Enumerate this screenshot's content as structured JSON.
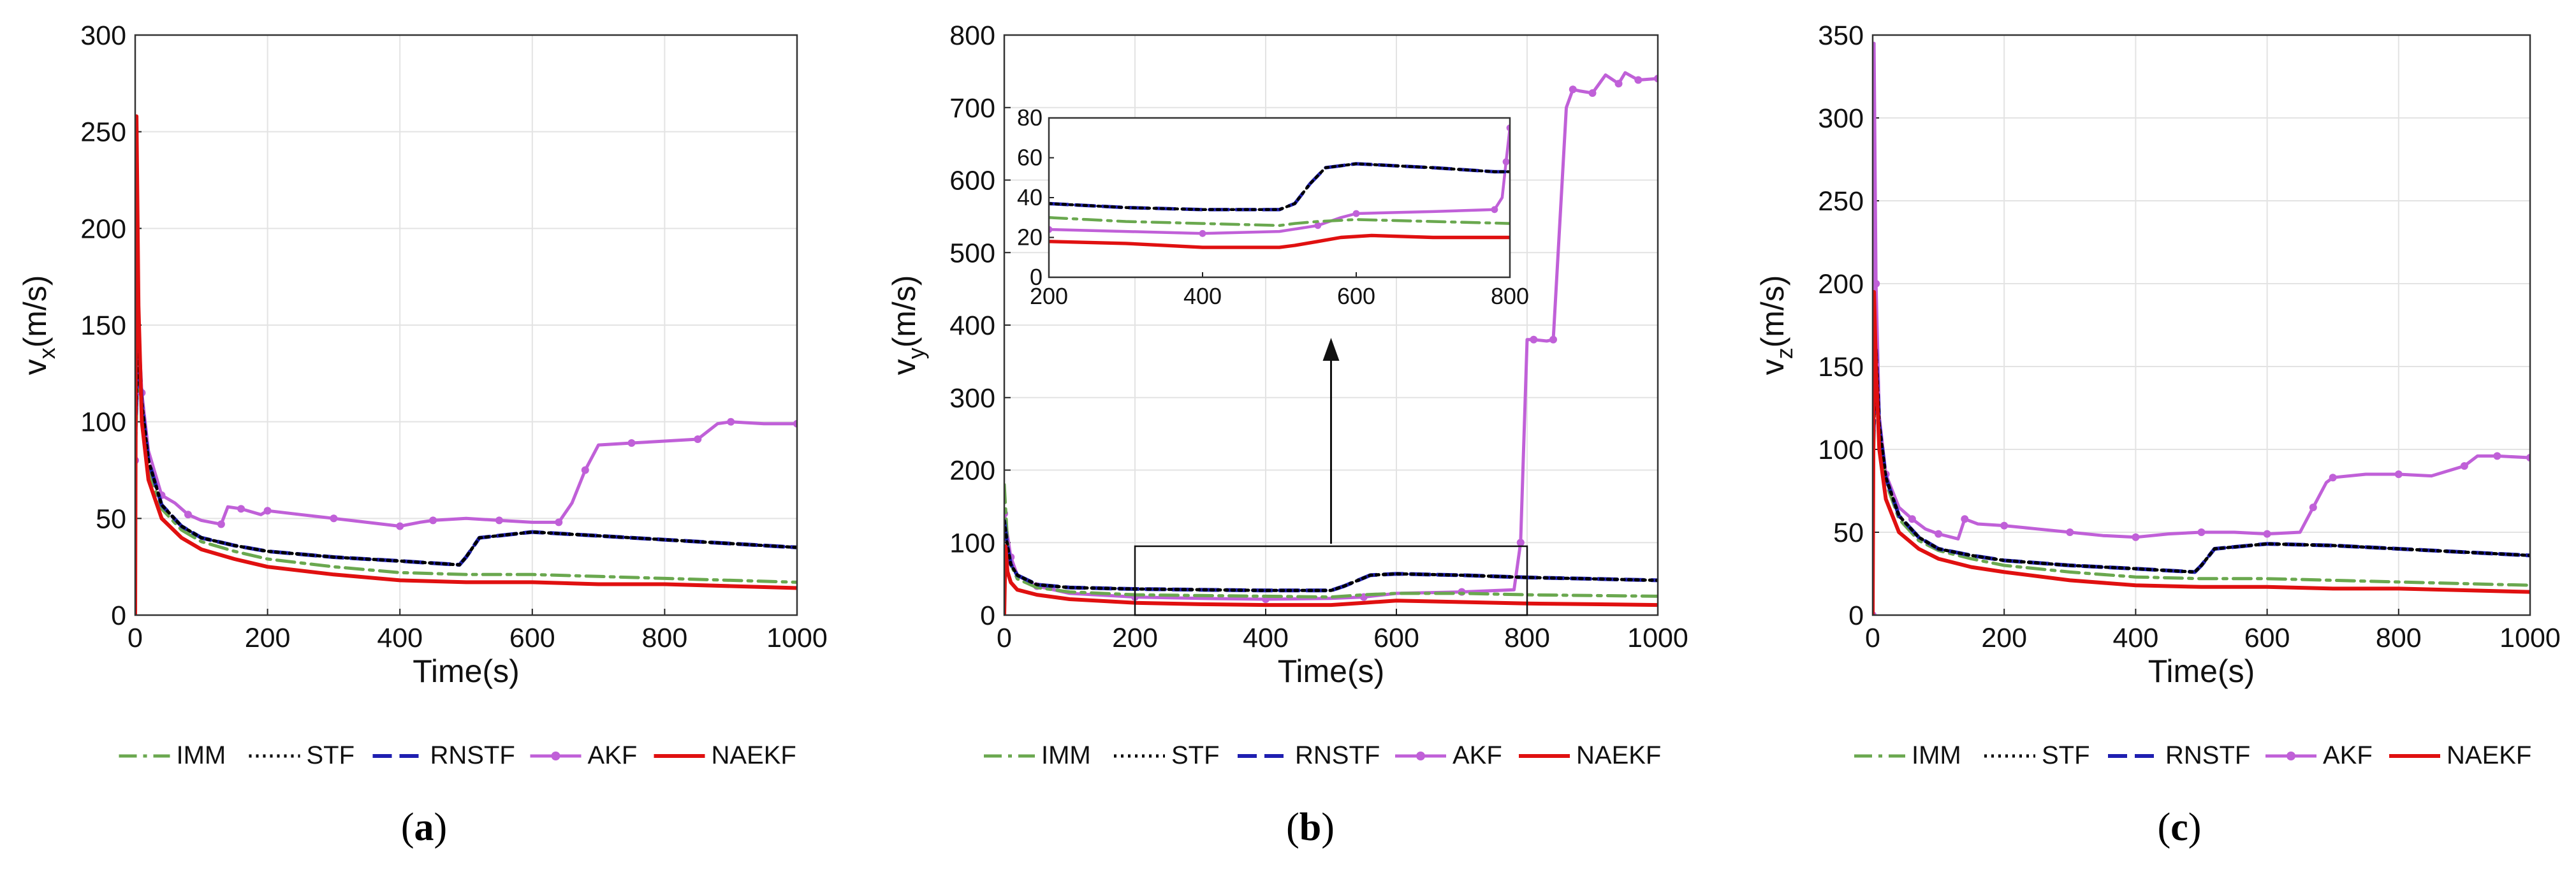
{
  "colors": {
    "IMM": "#6aa84f",
    "STF": "#000000",
    "RNSTF": "#1f1fb0",
    "AKF": "#c060d8",
    "NAEKF": "#e01010"
  },
  "legend": [
    "IMM",
    "STF",
    "RNSTF",
    "AKF",
    "NAEKF"
  ],
  "chart_data": [
    {
      "id": "a",
      "type": "line",
      "caption": {
        "open": "(",
        "letter": "a",
        "close": ")"
      },
      "xlabel": "Time(s)",
      "ylabel_main": "v",
      "ylabel_sub": "x",
      "ylabel_unit": "(m/s)",
      "xlim": [
        0,
        1000
      ],
      "ylim": [
        0,
        300
      ],
      "xticks": [
        "0",
        "200",
        "400",
        "600",
        "800",
        "1000"
      ],
      "yticks": [
        "0",
        "50",
        "100",
        "150",
        "200",
        "250",
        "300"
      ],
      "series": [
        {
          "name": "IMM",
          "x": [
            0,
            5,
            10,
            20,
            40,
            70,
            100,
            150,
            200,
            300,
            400,
            500,
            600,
            700,
            800,
            900,
            1000
          ],
          "y": [
            80,
            140,
            100,
            75,
            55,
            44,
            38,
            33,
            29,
            25,
            22,
            21,
            21,
            20,
            19,
            18,
            17
          ]
        },
        {
          "name": "STF",
          "x": [
            0,
            5,
            10,
            20,
            40,
            70,
            100,
            150,
            200,
            300,
            400,
            490,
            500,
            520,
            600,
            700,
            800,
            900,
            1000
          ],
          "y": [
            90,
            145,
            110,
            80,
            57,
            46,
            40,
            36,
            33,
            30,
            28,
            26,
            30,
            40,
            43,
            41,
            39,
            37,
            35
          ]
        },
        {
          "name": "RNSTF",
          "x": [
            0,
            5,
            10,
            20,
            40,
            70,
            100,
            150,
            200,
            300,
            400,
            490,
            500,
            520,
            600,
            700,
            800,
            900,
            1000
          ],
          "y": [
            90,
            145,
            110,
            80,
            57,
            46,
            40,
            36,
            33,
            30,
            28,
            26,
            30,
            40,
            43,
            41,
            39,
            37,
            35
          ]
        },
        {
          "name": "AKF",
          "x": [
            0,
            5,
            10,
            20,
            40,
            60,
            80,
            100,
            130,
            140,
            160,
            190,
            200,
            250,
            300,
            350,
            400,
            430,
            450,
            500,
            550,
            600,
            640,
            660,
            680,
            700,
            750,
            800,
            850,
            880,
            900,
            950,
            1000
          ],
          "y": [
            80,
            150,
            115,
            85,
            62,
            58,
            52,
            49,
            47,
            56,
            55,
            52,
            54,
            52,
            50,
            48,
            46,
            48,
            49,
            50,
            49,
            48,
            48,
            58,
            75,
            88,
            89,
            90,
            91,
            99,
            100,
            99,
            99
          ]
        },
        {
          "name": "NAEKF",
          "x": [
            0,
            2,
            5,
            10,
            20,
            40,
            70,
            100,
            150,
            200,
            300,
            400,
            500,
            600,
            700,
            800,
            900,
            1000
          ],
          "y": [
            0,
            258,
            160,
            100,
            70,
            50,
            40,
            34,
            29,
            25,
            21,
            18,
            17,
            17,
            16,
            16,
            15,
            14
          ]
        }
      ]
    },
    {
      "id": "b",
      "type": "line",
      "caption": {
        "open": "(",
        "letter": "b",
        "close": ")"
      },
      "xlabel": "Time(s)",
      "ylabel_main": "v",
      "ylabel_sub": "y",
      "ylabel_unit": "(m/s)",
      "xlim": [
        0,
        1000
      ],
      "ylim": [
        0,
        800
      ],
      "xticks": [
        "0",
        "200",
        "400",
        "600",
        "800",
        "1000"
      ],
      "yticks": [
        "0",
        "100",
        "200",
        "300",
        "400",
        "500",
        "600",
        "700",
        "800"
      ],
      "series": [
        {
          "name": "IMM",
          "x": [
            0,
            5,
            10,
            20,
            50,
            100,
            200,
            300,
            400,
            500,
            550,
            600,
            700,
            800,
            900,
            1000
          ],
          "y": [
            180,
            100,
            70,
            50,
            38,
            32,
            28,
            27,
            26,
            25,
            28,
            30,
            30,
            28,
            27,
            26
          ]
        },
        {
          "name": "STF",
          "x": [
            0,
            5,
            10,
            20,
            50,
            100,
            200,
            300,
            400,
            500,
            520,
            560,
            600,
            700,
            800,
            900,
            1000
          ],
          "y": [
            130,
            95,
            70,
            55,
            42,
            38,
            36,
            35,
            34,
            34,
            40,
            55,
            57,
            55,
            52,
            50,
            48
          ]
        },
        {
          "name": "RNSTF",
          "x": [
            0,
            5,
            10,
            20,
            50,
            100,
            200,
            300,
            400,
            500,
            520,
            560,
            600,
            700,
            800,
            900,
            1000
          ],
          "y": [
            130,
            95,
            70,
            55,
            42,
            38,
            36,
            35,
            34,
            34,
            40,
            55,
            57,
            55,
            52,
            50,
            48
          ]
        },
        {
          "name": "AKF",
          "x": [
            0,
            5,
            10,
            20,
            50,
            100,
            200,
            300,
            400,
            500,
            550,
            600,
            700,
            780,
            790,
            800,
            810,
            830,
            840,
            860,
            870,
            880,
            900,
            920,
            940,
            950,
            970,
            1000
          ],
          "y": [
            140,
            110,
            80,
            55,
            40,
            30,
            25,
            23,
            22,
            23,
            25,
            30,
            32,
            35,
            100,
            380,
            380,
            378,
            380,
            700,
            725,
            723,
            720,
            745,
            733,
            748,
            738,
            740
          ]
        },
        {
          "name": "NAEKF",
          "x": [
            0,
            2,
            5,
            10,
            20,
            50,
            100,
            200,
            300,
            400,
            500,
            550,
            600,
            700,
            800,
            900,
            1000
          ],
          "y": [
            0,
            95,
            60,
            45,
            35,
            28,
            22,
            17,
            15,
            14,
            14,
            17,
            20,
            18,
            16,
            15,
            14
          ]
        }
      ],
      "inset": {
        "xlim": [
          200,
          800
        ],
        "ylim": [
          0,
          80
        ],
        "xticks": [
          "200",
          "400",
          "600",
          "800"
        ],
        "yticks": [
          "0",
          "20",
          "40",
          "60",
          "80"
        ],
        "series": [
          {
            "name": "IMM",
            "x": [
              200,
              250,
              300,
              400,
              500,
              520,
              550,
              600,
              700,
              800
            ],
            "y": [
              30,
              29,
              28,
              27,
              26,
              27,
              28,
              29,
              28,
              27
            ]
          },
          {
            "name": "STF",
            "x": [
              200,
              300,
              400,
              500,
              520,
              540,
              560,
              600,
              700,
              780,
              800
            ],
            "y": [
              37,
              35,
              34,
              34,
              37,
              47,
              55,
              57,
              55,
              53,
              53
            ]
          },
          {
            "name": "RNSTF",
            "x": [
              200,
              300,
              400,
              500,
              520,
              540,
              560,
              600,
              700,
              780,
              800
            ],
            "y": [
              37,
              35,
              34,
              34,
              37,
              47,
              55,
              57,
              55,
              53,
              53
            ]
          },
          {
            "name": "AKF",
            "x": [
              200,
              300,
              400,
              500,
              550,
              580,
              600,
              700,
              780,
              790,
              795,
              800
            ],
            "y": [
              24,
              23,
              22,
              23,
              26,
              30,
              32,
              33,
              34,
              40,
              58,
              75
            ]
          },
          {
            "name": "NAEKF",
            "x": [
              200,
              300,
              400,
              500,
              520,
              550,
              580,
              620,
              700,
              800
            ],
            "y": [
              18,
              17,
              15,
              15,
              16,
              18,
              20,
              21,
              20,
              20
            ]
          }
        ]
      },
      "zoom_box": {
        "x": [
          200,
          800
        ],
        "y": [
          0,
          95
        ]
      }
    },
    {
      "id": "c",
      "type": "line",
      "caption": {
        "open": "(",
        "letter": "c",
        "close": ")"
      },
      "xlabel": "Time(s)",
      "ylabel_main": "v",
      "ylabel_sub": "z",
      "ylabel_unit": "(m/s)",
      "xlim": [
        0,
        1000
      ],
      "ylim": [
        0,
        350
      ],
      "xticks": [
        "0",
        "200",
        "400",
        "600",
        "800",
        "1000"
      ],
      "yticks": [
        "0",
        "50",
        "100",
        "150",
        "200",
        "250",
        "300",
        "350"
      ],
      "series": [
        {
          "name": "IMM",
          "x": [
            0,
            5,
            10,
            20,
            40,
            70,
            100,
            150,
            200,
            300,
            400,
            500,
            600,
            700,
            800,
            900,
            1000
          ],
          "y": [
            80,
            150,
            110,
            80,
            58,
            45,
            39,
            34,
            30,
            26,
            23,
            22,
            22,
            21,
            20,
            19,
            18
          ]
        },
        {
          "name": "STF",
          "x": [
            0,
            5,
            10,
            20,
            40,
            70,
            100,
            150,
            200,
            300,
            400,
            490,
            500,
            520,
            600,
            700,
            800,
            900,
            1000
          ],
          "y": [
            90,
            160,
            115,
            83,
            60,
            47,
            40,
            36,
            33,
            30,
            28,
            26,
            30,
            40,
            43,
            42,
            40,
            38,
            36
          ]
        },
        {
          "name": "RNSTF",
          "x": [
            0,
            5,
            10,
            20,
            40,
            70,
            100,
            150,
            200,
            300,
            400,
            490,
            500,
            520,
            600,
            700,
            800,
            900,
            1000
          ],
          "y": [
            90,
            160,
            115,
            83,
            60,
            47,
            40,
            36,
            33,
            30,
            28,
            26,
            30,
            40,
            43,
            42,
            40,
            38,
            36
          ]
        },
        {
          "name": "AKF",
          "x": [
            0,
            2,
            5,
            10,
            20,
            40,
            60,
            80,
            100,
            130,
            140,
            160,
            200,
            250,
            300,
            350,
            400,
            450,
            500,
            550,
            600,
            650,
            670,
            690,
            700,
            750,
            800,
            850,
            900,
            920,
            950,
            1000
          ],
          "y": [
            0,
            345,
            200,
            120,
            85,
            65,
            58,
            52,
            49,
            46,
            58,
            55,
            54,
            52,
            50,
            48,
            47,
            49,
            50,
            50,
            49,
            50,
            65,
            80,
            83,
            85,
            85,
            84,
            90,
            96,
            96,
            95
          ]
        },
        {
          "name": "NAEKF",
          "x": [
            0,
            2,
            5,
            10,
            20,
            40,
            70,
            100,
            150,
            200,
            300,
            400,
            500,
            600,
            700,
            800,
            900,
            1000
          ],
          "y": [
            0,
            195,
            150,
            100,
            70,
            50,
            40,
            34,
            29,
            26,
            21,
            18,
            17,
            17,
            16,
            16,
            15,
            14
          ]
        }
      ]
    }
  ]
}
